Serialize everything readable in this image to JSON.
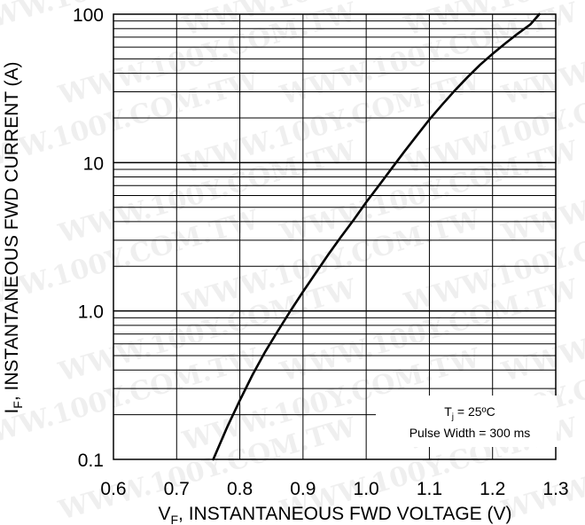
{
  "chart_data": {
    "type": "line",
    "xlabel_main": "V",
    "xlabel_sub": "F",
    "xlabel_rest": ", INSTANTANEOUS FWD VOLTAGE (V)",
    "ylabel_main": "I",
    "ylabel_sub": "F",
    "ylabel_rest": ", INSTANTANEOUS FWD CURRENT (A)",
    "xlim": [
      0.6,
      1.3
    ],
    "ylim": [
      0.1,
      100
    ],
    "yscale": "log",
    "x_ticks": [
      "0.6",
      "0.7",
      "0.8",
      "0.9",
      "1.0",
      "1.1",
      "1.2",
      "1.3"
    ],
    "y_ticks": [
      "0.1",
      "1.0",
      "10",
      "100"
    ],
    "grid": true,
    "series": [
      {
        "x": [
          0.758,
          0.78,
          0.8,
          0.82,
          0.84,
          0.86,
          0.88,
          0.9,
          0.92,
          0.94,
          0.96,
          0.98,
          1.0,
          1.02,
          1.04,
          1.06,
          1.08,
          1.1,
          1.12,
          1.14,
          1.16,
          1.18,
          1.2,
          1.22,
          1.24,
          1.26,
          1.274
        ],
        "y": [
          0.1,
          0.165,
          0.25,
          0.37,
          0.53,
          0.73,
          1.0,
          1.35,
          1.8,
          2.4,
          3.15,
          4.1,
          5.4,
          7.0,
          9.1,
          11.8,
          15.2,
          19.5,
          24.5,
          30.5,
          37.5,
          45.5,
          54.0,
          63.5,
          74.0,
          85.5,
          100.0
        ]
      }
    ],
    "annotation": {
      "line1_main": "T",
      "line1_sub": "j",
      "line1_rest": " = 25ºC",
      "line2": "Pulse Width = 300 ms"
    }
  },
  "watermark": "WWW.100Y.COM.TW"
}
